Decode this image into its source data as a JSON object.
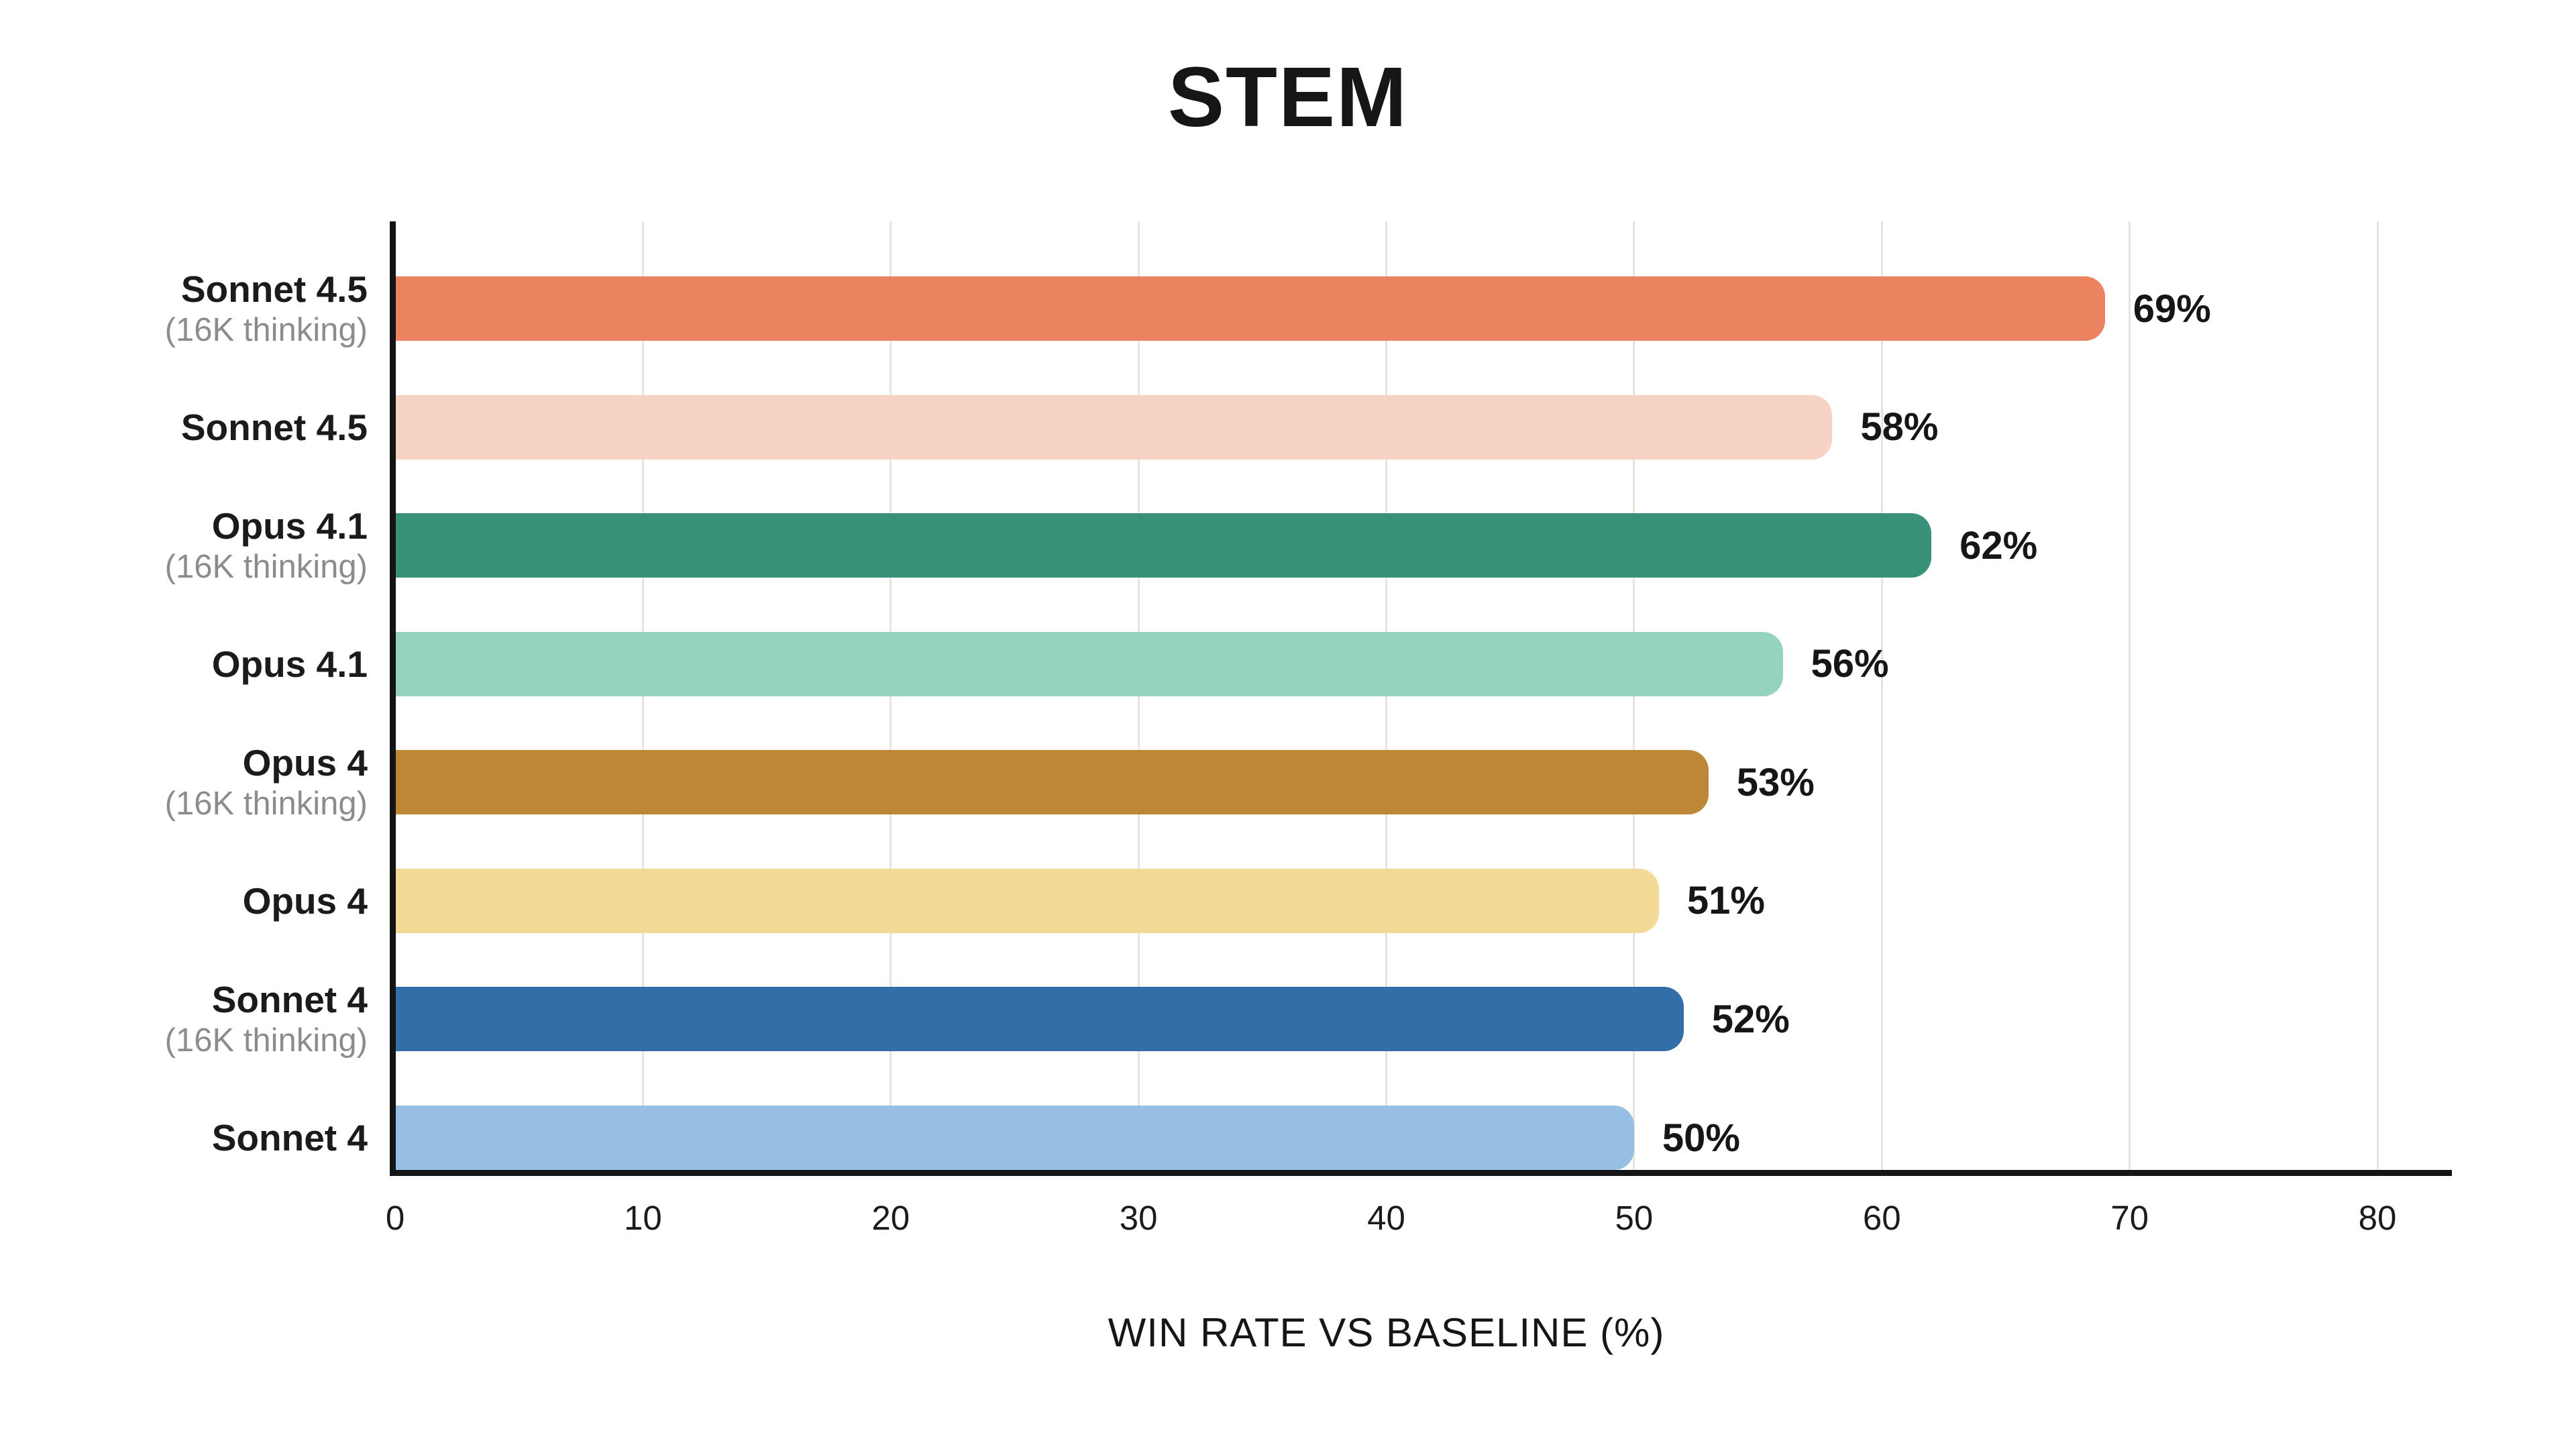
{
  "title": "STEM",
  "colors": {
    "background": "#FFFFFF",
    "axis": "#141414",
    "gridline": "#E8E5DB",
    "label_text": "#1B1B1B",
    "sublabel_text": "#8C8C8C"
  },
  "chart_data": {
    "type": "bar",
    "orientation": "horizontal",
    "title": "STEM",
    "xlabel": "WIN RATE VS BASELINE (%)",
    "ylabel": "",
    "xlim": [
      0,
      80
    ],
    "xticks": [
      0,
      10,
      20,
      30,
      40,
      50,
      60,
      70,
      80
    ],
    "grid": true,
    "legend": false,
    "categories": [
      "Sonnet 4.5 (16K thinking)",
      "Sonnet 4.5",
      "Opus 4.1 (16K thinking)",
      "Opus 4.1",
      "Opus 4 (16K thinking)",
      "Opus 4",
      "Sonnet 4 (16K thinking)",
      "Sonnet 4"
    ],
    "bars": [
      {
        "label": "Sonnet 4.5",
        "sublabel": "(16K thinking)",
        "value": 69,
        "value_label": "69%",
        "color": "#EB8361"
      },
      {
        "label": "Sonnet 4.5",
        "sublabel": "",
        "value": 58,
        "value_label": "58%",
        "color": "#F6D3C4"
      },
      {
        "label": "Opus 4.1",
        "sublabel": "(16K thinking)",
        "value": 62,
        "value_label": "62%",
        "color": "#399179"
      },
      {
        "label": "Opus 4.1",
        "sublabel": "",
        "value": 56,
        "value_label": "56%",
        "color": "#96D3BF"
      },
      {
        "label": "Opus 4",
        "sublabel": "(16K thinking)",
        "value": 53,
        "value_label": "53%",
        "color": "#BD8737"
      },
      {
        "label": "Opus 4",
        "sublabel": "",
        "value": 51,
        "value_label": "51%",
        "color": "#F3DB97"
      },
      {
        "label": "Sonnet 4",
        "sublabel": "(16K thinking)",
        "value": 52,
        "value_label": "52%",
        "color": "#346EA8"
      },
      {
        "label": "Sonnet 4",
        "sublabel": "",
        "value": 50,
        "value_label": "50%",
        "color": "#96BFE3"
      }
    ]
  }
}
